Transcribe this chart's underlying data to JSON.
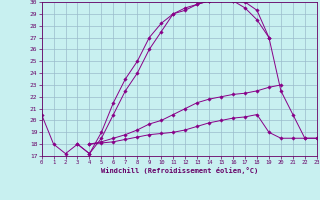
{
  "xlabel": "Windchill (Refroidissement éolien,°C)",
  "background_color": "#c8f0f0",
  "grid_color": "#9bbccc",
  "line_color": "#880088",
  "xlim": [
    0,
    23
  ],
  "ylim": [
    17,
    30
  ],
  "x_ticks": [
    0,
    1,
    2,
    3,
    4,
    5,
    6,
    7,
    8,
    9,
    10,
    11,
    12,
    13,
    14,
    15,
    16,
    17,
    18,
    19,
    20,
    21,
    22,
    23
  ],
  "y_ticks": [
    17,
    18,
    19,
    20,
    21,
    22,
    23,
    24,
    25,
    26,
    27,
    28,
    29,
    30
  ],
  "curves": [
    {
      "x": [
        0,
        1,
        2,
        3,
        4,
        5,
        6,
        7,
        8,
        9,
        10,
        11,
        12,
        13,
        14,
        15,
        16,
        17,
        18,
        19
      ],
      "y": [
        20.5,
        18.0,
        17.2,
        18.0,
        17.2,
        18.5,
        20.5,
        22.5,
        24.0,
        26.0,
        27.5,
        29.0,
        29.5,
        29.8,
        30.1,
        30.2,
        30.1,
        30.0,
        29.3,
        27.0
      ]
    },
    {
      "x": [
        3,
        4,
        5,
        6,
        7,
        8,
        9,
        10,
        11,
        12,
        13,
        14,
        15,
        16,
        17,
        18,
        19,
        20,
        21,
        22,
        23
      ],
      "y": [
        18.0,
        17.2,
        19.0,
        21.5,
        23.5,
        25.0,
        27.0,
        28.2,
        29.0,
        29.3,
        29.8,
        30.1,
        30.2,
        30.1,
        29.5,
        28.5,
        27.0,
        22.5,
        20.5,
        18.5,
        18.5
      ]
    },
    {
      "x": [
        4,
        5,
        6,
        7,
        8,
        9,
        10,
        11,
        12,
        13,
        14,
        15,
        16,
        17,
        18,
        19,
        20
      ],
      "y": [
        18.0,
        18.2,
        18.5,
        18.8,
        19.2,
        19.7,
        20.0,
        20.5,
        21.0,
        21.5,
        21.8,
        22.0,
        22.2,
        22.3,
        22.5,
        22.8,
        23.0
      ]
    },
    {
      "x": [
        4,
        5,
        6,
        7,
        8,
        9,
        10,
        11,
        12,
        13,
        14,
        15,
        16,
        17,
        18,
        19,
        20,
        21,
        22,
        23
      ],
      "y": [
        18.0,
        18.1,
        18.2,
        18.4,
        18.6,
        18.8,
        18.9,
        19.0,
        19.2,
        19.5,
        19.8,
        20.0,
        20.2,
        20.3,
        20.5,
        19.0,
        18.5,
        18.5,
        18.5,
        18.5
      ]
    }
  ]
}
